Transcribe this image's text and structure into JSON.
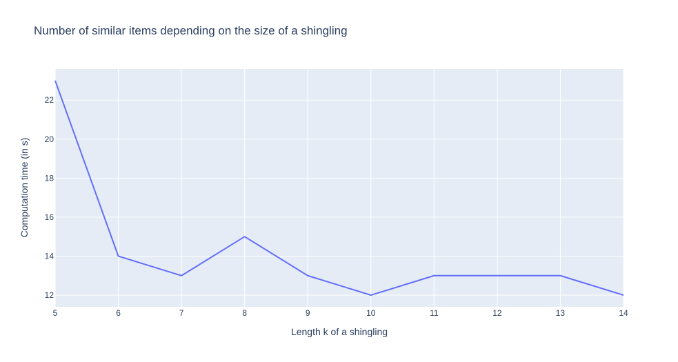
{
  "chart_data": {
    "type": "line",
    "title": "Number of similar items depending on the size of a shingling",
    "xlabel": "Length k of a shingling",
    "ylabel": "Computation time (in s)",
    "x": [
      5,
      6,
      7,
      8,
      9,
      10,
      11,
      12,
      13,
      14
    ],
    "series": [
      {
        "values": [
          23,
          14,
          13,
          15,
          13,
          12,
          13,
          13,
          13,
          12
        ]
      }
    ],
    "xlim": [
      5,
      14
    ],
    "ylim": [
      11.4,
      23.6
    ],
    "xticks": [
      5,
      6,
      7,
      8,
      9,
      10,
      11,
      12,
      13,
      14
    ],
    "yticks": [
      12,
      14,
      16,
      18,
      20,
      22
    ],
    "grid": true,
    "legend": "none",
    "colors": {
      "plot_background": "#e5ecf6",
      "grid": "#ffffff",
      "line": "#636efa",
      "text": "#2a3f5f"
    }
  }
}
